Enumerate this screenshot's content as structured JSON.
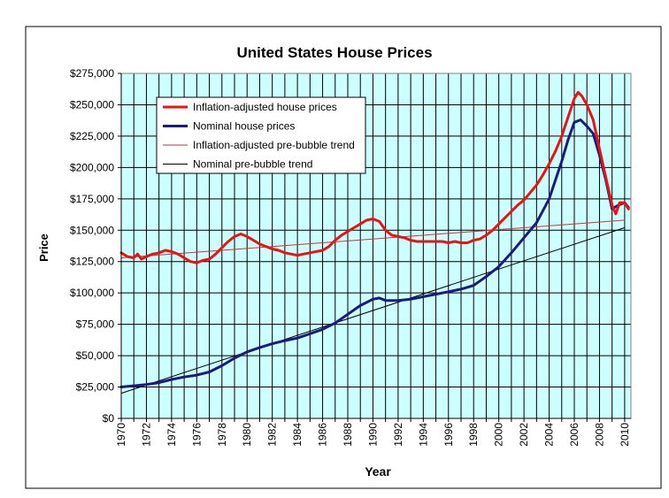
{
  "chart_data": {
    "type": "line",
    "title": "United States House Prices",
    "xlabel": "Year",
    "ylabel": "Price",
    "xlim": [
      1970,
      2010.5
    ],
    "ylim": [
      0,
      275000
    ],
    "grid": true,
    "legend_position": "top-left",
    "plot_background": "#ccffff",
    "y_ticks": [
      0,
      25000,
      50000,
      75000,
      100000,
      125000,
      150000,
      175000,
      200000,
      225000,
      250000,
      275000
    ],
    "y_tick_labels": [
      "$0",
      "$25,000",
      "$50,000",
      "$75,000",
      "$100,000",
      "$125,000",
      "$150,000",
      "$175,000",
      "$200,000",
      "$225,000",
      "$250,000",
      "$275,000"
    ],
    "x_ticks": [
      1970,
      1972,
      1974,
      1976,
      1978,
      1980,
      1982,
      1984,
      1986,
      1988,
      1990,
      1992,
      1994,
      1996,
      1998,
      2000,
      2002,
      2004,
      2006,
      2008,
      2010
    ],
    "x_tick_labels": [
      "1970",
      "1972",
      "1974",
      "1976",
      "1978",
      "1980",
      "1982",
      "1984",
      "1986",
      "1988",
      "1990",
      "1992",
      "1994",
      "1996",
      "1998",
      "2000",
      "2002",
      "2004",
      "2006",
      "2008",
      "2010"
    ],
    "series": [
      {
        "name": "Inflation-adjusted house prices",
        "color": "#ee1111",
        "style": "thick",
        "x": [
          1970,
          1970.5,
          1971,
          1971.3,
          1971.6,
          1972,
          1972.5,
          1973,
          1973.5,
          1974,
          1974.5,
          1975,
          1975.5,
          1976,
          1976.5,
          1977,
          1977.5,
          1978,
          1978.5,
          1979,
          1979.5,
          1980,
          1980.5,
          1981,
          1981.5,
          1982,
          1982.5,
          1983,
          1983.5,
          1984,
          1984.5,
          1985,
          1985.5,
          1986,
          1986.5,
          1987,
          1987.5,
          1988,
          1988.5,
          1989,
          1989.5,
          1990,
          1990.5,
          1991,
          1991.5,
          1992,
          1992.5,
          1993,
          1993.5,
          1994,
          1994.5,
          1995,
          1995.5,
          1996,
          1996.5,
          1997,
          1997.5,
          1998,
          1998.5,
          1999,
          1999.5,
          2000,
          2000.5,
          2001,
          2001.5,
          2002,
          2002.5,
          2003,
          2003.5,
          2004,
          2004.5,
          2005,
          2005.5,
          2006,
          2006.3,
          2006.6,
          2007,
          2007.5,
          2008,
          2008.5,
          2009,
          2009.3,
          2009.6,
          2010,
          2010.3
        ],
        "values": [
          132000,
          129000,
          128000,
          131000,
          127000,
          129000,
          131000,
          132000,
          134000,
          133000,
          131000,
          128000,
          125000,
          124000,
          126000,
          127000,
          131000,
          136000,
          141000,
          145000,
          147000,
          145000,
          142000,
          139000,
          137000,
          135000,
          134000,
          132000,
          131000,
          130000,
          131000,
          132000,
          133000,
          134000,
          137000,
          142000,
          146000,
          149000,
          152000,
          155000,
          158000,
          159000,
          157000,
          150000,
          146000,
          145000,
          144000,
          142000,
          141000,
          141000,
          141000,
          141000,
          141000,
          140000,
          141000,
          140000,
          140000,
          142000,
          143000,
          146000,
          150000,
          155000,
          160000,
          165000,
          170000,
          174000,
          180000,
          186000,
          194000,
          203000,
          213000,
          225000,
          240000,
          255000,
          260000,
          257000,
          250000,
          238000,
          215000,
          192000,
          170000,
          163000,
          172000,
          172000,
          167000
        ]
      },
      {
        "name": "Nominal house prices",
        "color": "#1a1a80",
        "style": "thick",
        "x": [
          1970,
          1971,
          1972,
          1973,
          1974,
          1975,
          1976,
          1977,
          1978,
          1979,
          1980,
          1981,
          1982,
          1983,
          1984,
          1985,
          1986,
          1987,
          1988,
          1989,
          1990,
          1990.5,
          1991,
          1992,
          1993,
          1994,
          1995,
          1996,
          1997,
          1998,
          1999,
          2000,
          2001,
          2002,
          2003,
          2004,
          2004.5,
          2005,
          2005.5,
          2006,
          2006.5,
          2007,
          2007.5,
          2008,
          2008.5,
          2009,
          2009.5,
          2010,
          2010.3
        ],
        "values": [
          25000,
          26000,
          27000,
          28500,
          31000,
          33000,
          34500,
          37000,
          42000,
          48000,
          53000,
          56500,
          59500,
          62000,
          64000,
          67500,
          71000,
          76000,
          83000,
          90000,
          95000,
          96000,
          94000,
          94000,
          95000,
          97000,
          99000,
          101000,
          103000,
          106000,
          113000,
          121000,
          132000,
          144000,
          156000,
          175000,
          190000,
          205000,
          222000,
          236000,
          238000,
          233000,
          227000,
          210000,
          190000,
          167000,
          170000,
          172000,
          168000
        ]
      },
      {
        "name": "Inflation-adjusted pre-bubble trend",
        "color": "#cc3333",
        "style": "thin",
        "x": [
          1970,
          2010
        ],
        "values": [
          128000,
          158000
        ]
      },
      {
        "name": "Nominal pre-bubble trend",
        "color": "#000000",
        "style": "thin",
        "x": [
          1970,
          2010
        ],
        "values": [
          20000,
          152000
        ]
      }
    ]
  }
}
